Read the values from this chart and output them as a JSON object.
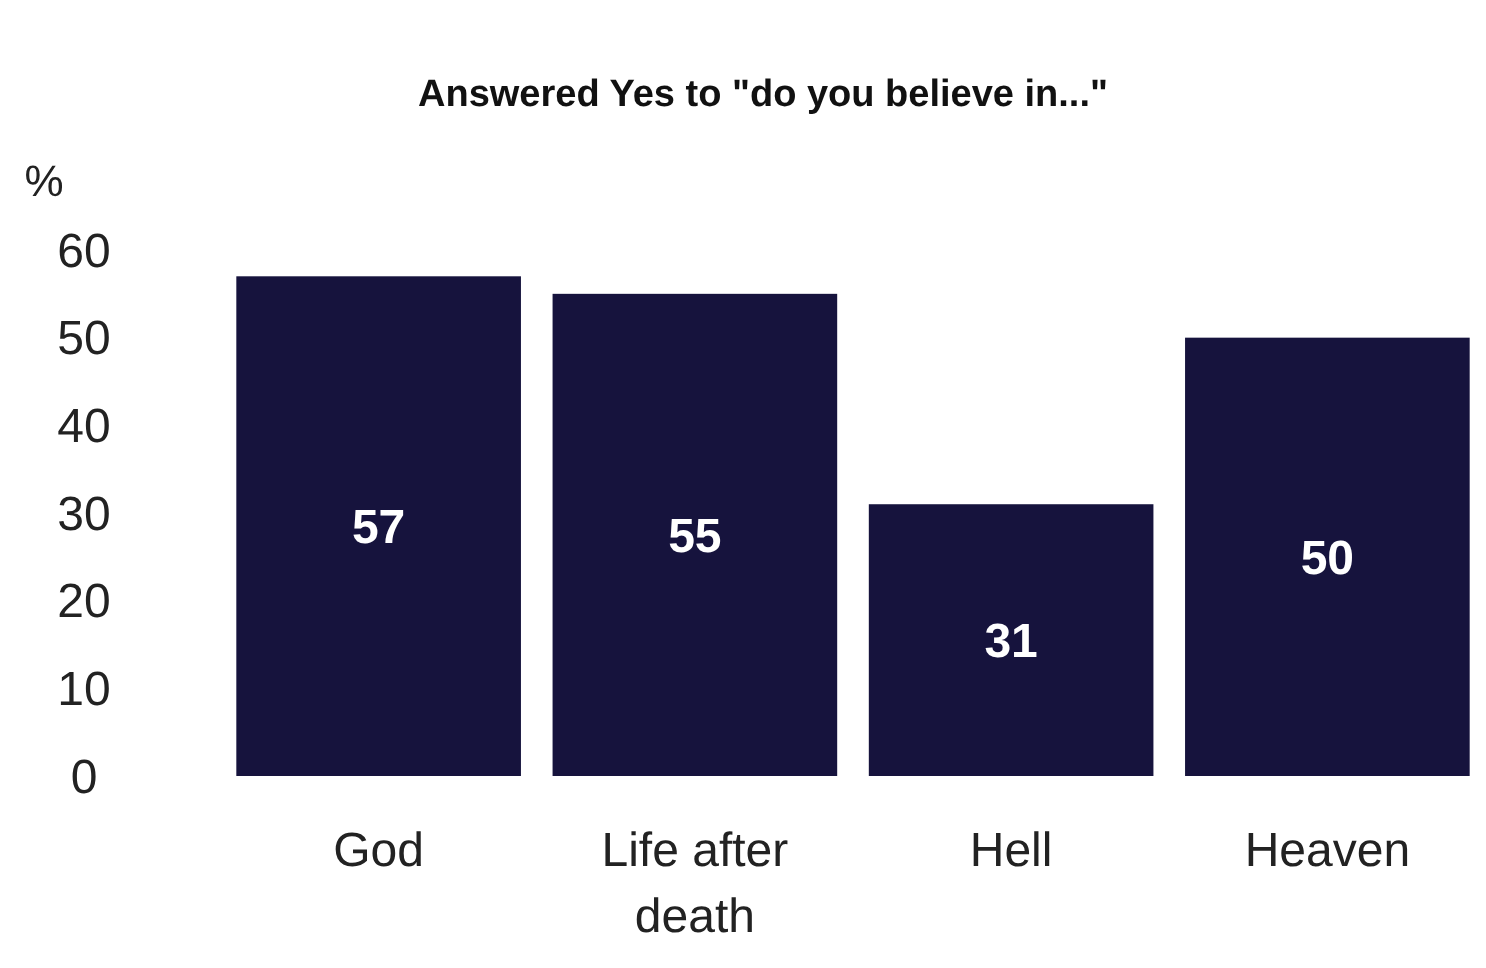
{
  "chart_data": {
    "type": "bar",
    "title": "Answered Yes to \"do you believe in...\"",
    "ylabel": "%",
    "categories": [
      "God",
      "Life after death",
      "Hell",
      "Heaven"
    ],
    "values": [
      57,
      55,
      31,
      50
    ],
    "color": "#16133d",
    "ylim": [
      0,
      60
    ],
    "yticks": [
      0,
      10,
      20,
      30,
      40,
      50,
      60
    ],
    "grid": false,
    "data_labels": true
  }
}
